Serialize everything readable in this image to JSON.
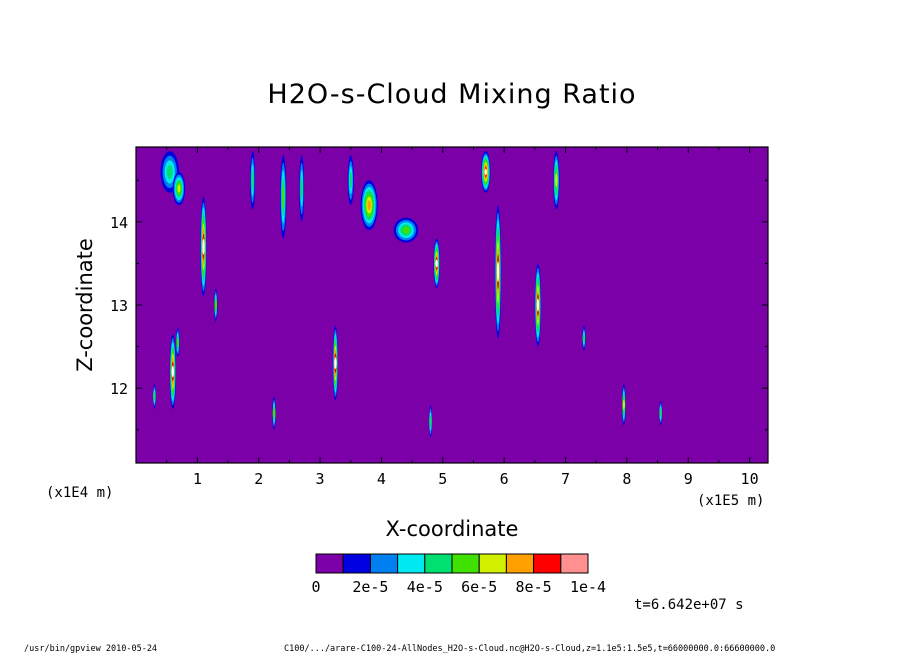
{
  "chart_data": {
    "type": "heatmap",
    "title": "H2O-s-Cloud Mixing Ratio",
    "xlabel": "X-coordinate",
    "ylabel": "Z-coordinate",
    "x_scale_label": "(x1E5 m)",
    "y_scale_label": "(x1E4 m)",
    "xlim": [
      0,
      10.3
    ],
    "ylim": [
      11.1,
      14.9
    ],
    "x_ticks": [
      1,
      2,
      3,
      4,
      5,
      6,
      7,
      8,
      9,
      10
    ],
    "y_ticks": [
      12,
      13,
      14
    ],
    "background_color": "#7b00a8",
    "colorbar": {
      "colors": [
        "#7b00a8",
        "#0000e0",
        "#0080f0",
        "#00e8f0",
        "#00e070",
        "#40e000",
        "#d0f000",
        "#ffa000",
        "#ff0000",
        "#ff9090"
      ],
      "tick_labels": [
        "0",
        "2e-5",
        "4e-5",
        "6e-5",
        "8e-5",
        "1e-4"
      ]
    },
    "time_label": "t=6.642e+07 s",
    "cloud_features": [
      {
        "x": 0.6,
        "z": 12.2,
        "w": 0.1,
        "h": 0.9,
        "level": 9
      },
      {
        "x": 0.68,
        "z": 12.55,
        "w": 0.06,
        "h": 0.35,
        "level": 5
      },
      {
        "x": 0.3,
        "z": 11.9,
        "w": 0.04,
        "h": 0.3,
        "level": 4
      },
      {
        "x": 0.55,
        "z": 14.6,
        "w": 0.3,
        "h": 0.5,
        "level": 4
      },
      {
        "x": 0.7,
        "z": 14.4,
        "w": 0.2,
        "h": 0.4,
        "level": 6
      },
      {
        "x": 1.1,
        "z": 13.7,
        "w": 0.1,
        "h": 1.2,
        "level": 9
      },
      {
        "x": 1.3,
        "z": 13.0,
        "w": 0.05,
        "h": 0.4,
        "level": 5
      },
      {
        "x": 1.9,
        "z": 14.5,
        "w": 0.08,
        "h": 0.7,
        "level": 4
      },
      {
        "x": 2.4,
        "z": 14.3,
        "w": 0.1,
        "h": 1.0,
        "level": 5
      },
      {
        "x": 2.7,
        "z": 14.4,
        "w": 0.08,
        "h": 0.8,
        "level": 4
      },
      {
        "x": 2.25,
        "z": 11.7,
        "w": 0.05,
        "h": 0.4,
        "level": 5
      },
      {
        "x": 3.25,
        "z": 12.3,
        "w": 0.08,
        "h": 0.9,
        "level": 9
      },
      {
        "x": 3.5,
        "z": 14.5,
        "w": 0.1,
        "h": 0.6,
        "level": 4
      },
      {
        "x": 3.8,
        "z": 14.2,
        "w": 0.28,
        "h": 0.6,
        "level": 7
      },
      {
        "x": 4.4,
        "z": 13.9,
        "w": 0.4,
        "h": 0.3,
        "level": 5
      },
      {
        "x": 4.9,
        "z": 13.5,
        "w": 0.1,
        "h": 0.6,
        "level": 9
      },
      {
        "x": 5.7,
        "z": 14.6,
        "w": 0.15,
        "h": 0.5,
        "level": 9
      },
      {
        "x": 5.9,
        "z": 13.4,
        "w": 0.1,
        "h": 1.6,
        "level": 9
      },
      {
        "x": 6.55,
        "z": 13.0,
        "w": 0.1,
        "h": 1.0,
        "level": 9
      },
      {
        "x": 6.85,
        "z": 14.5,
        "w": 0.1,
        "h": 0.7,
        "level": 6
      },
      {
        "x": 7.3,
        "z": 12.6,
        "w": 0.05,
        "h": 0.3,
        "level": 4
      },
      {
        "x": 7.95,
        "z": 11.8,
        "w": 0.06,
        "h": 0.5,
        "level": 6
      },
      {
        "x": 8.55,
        "z": 11.7,
        "w": 0.04,
        "h": 0.3,
        "level": 4
      },
      {
        "x": 4.8,
        "z": 11.6,
        "w": 0.04,
        "h": 0.4,
        "level": 4
      }
    ]
  },
  "footer": {
    "left": "/usr/bin/gpview  2010-05-24",
    "right": "C100/.../arare-C100-24-AllNodes_H2O-s-Cloud.nc@H2O-s-Cloud,z=1.1e5:1.5e5,t=66000000.0:66600000.0"
  }
}
